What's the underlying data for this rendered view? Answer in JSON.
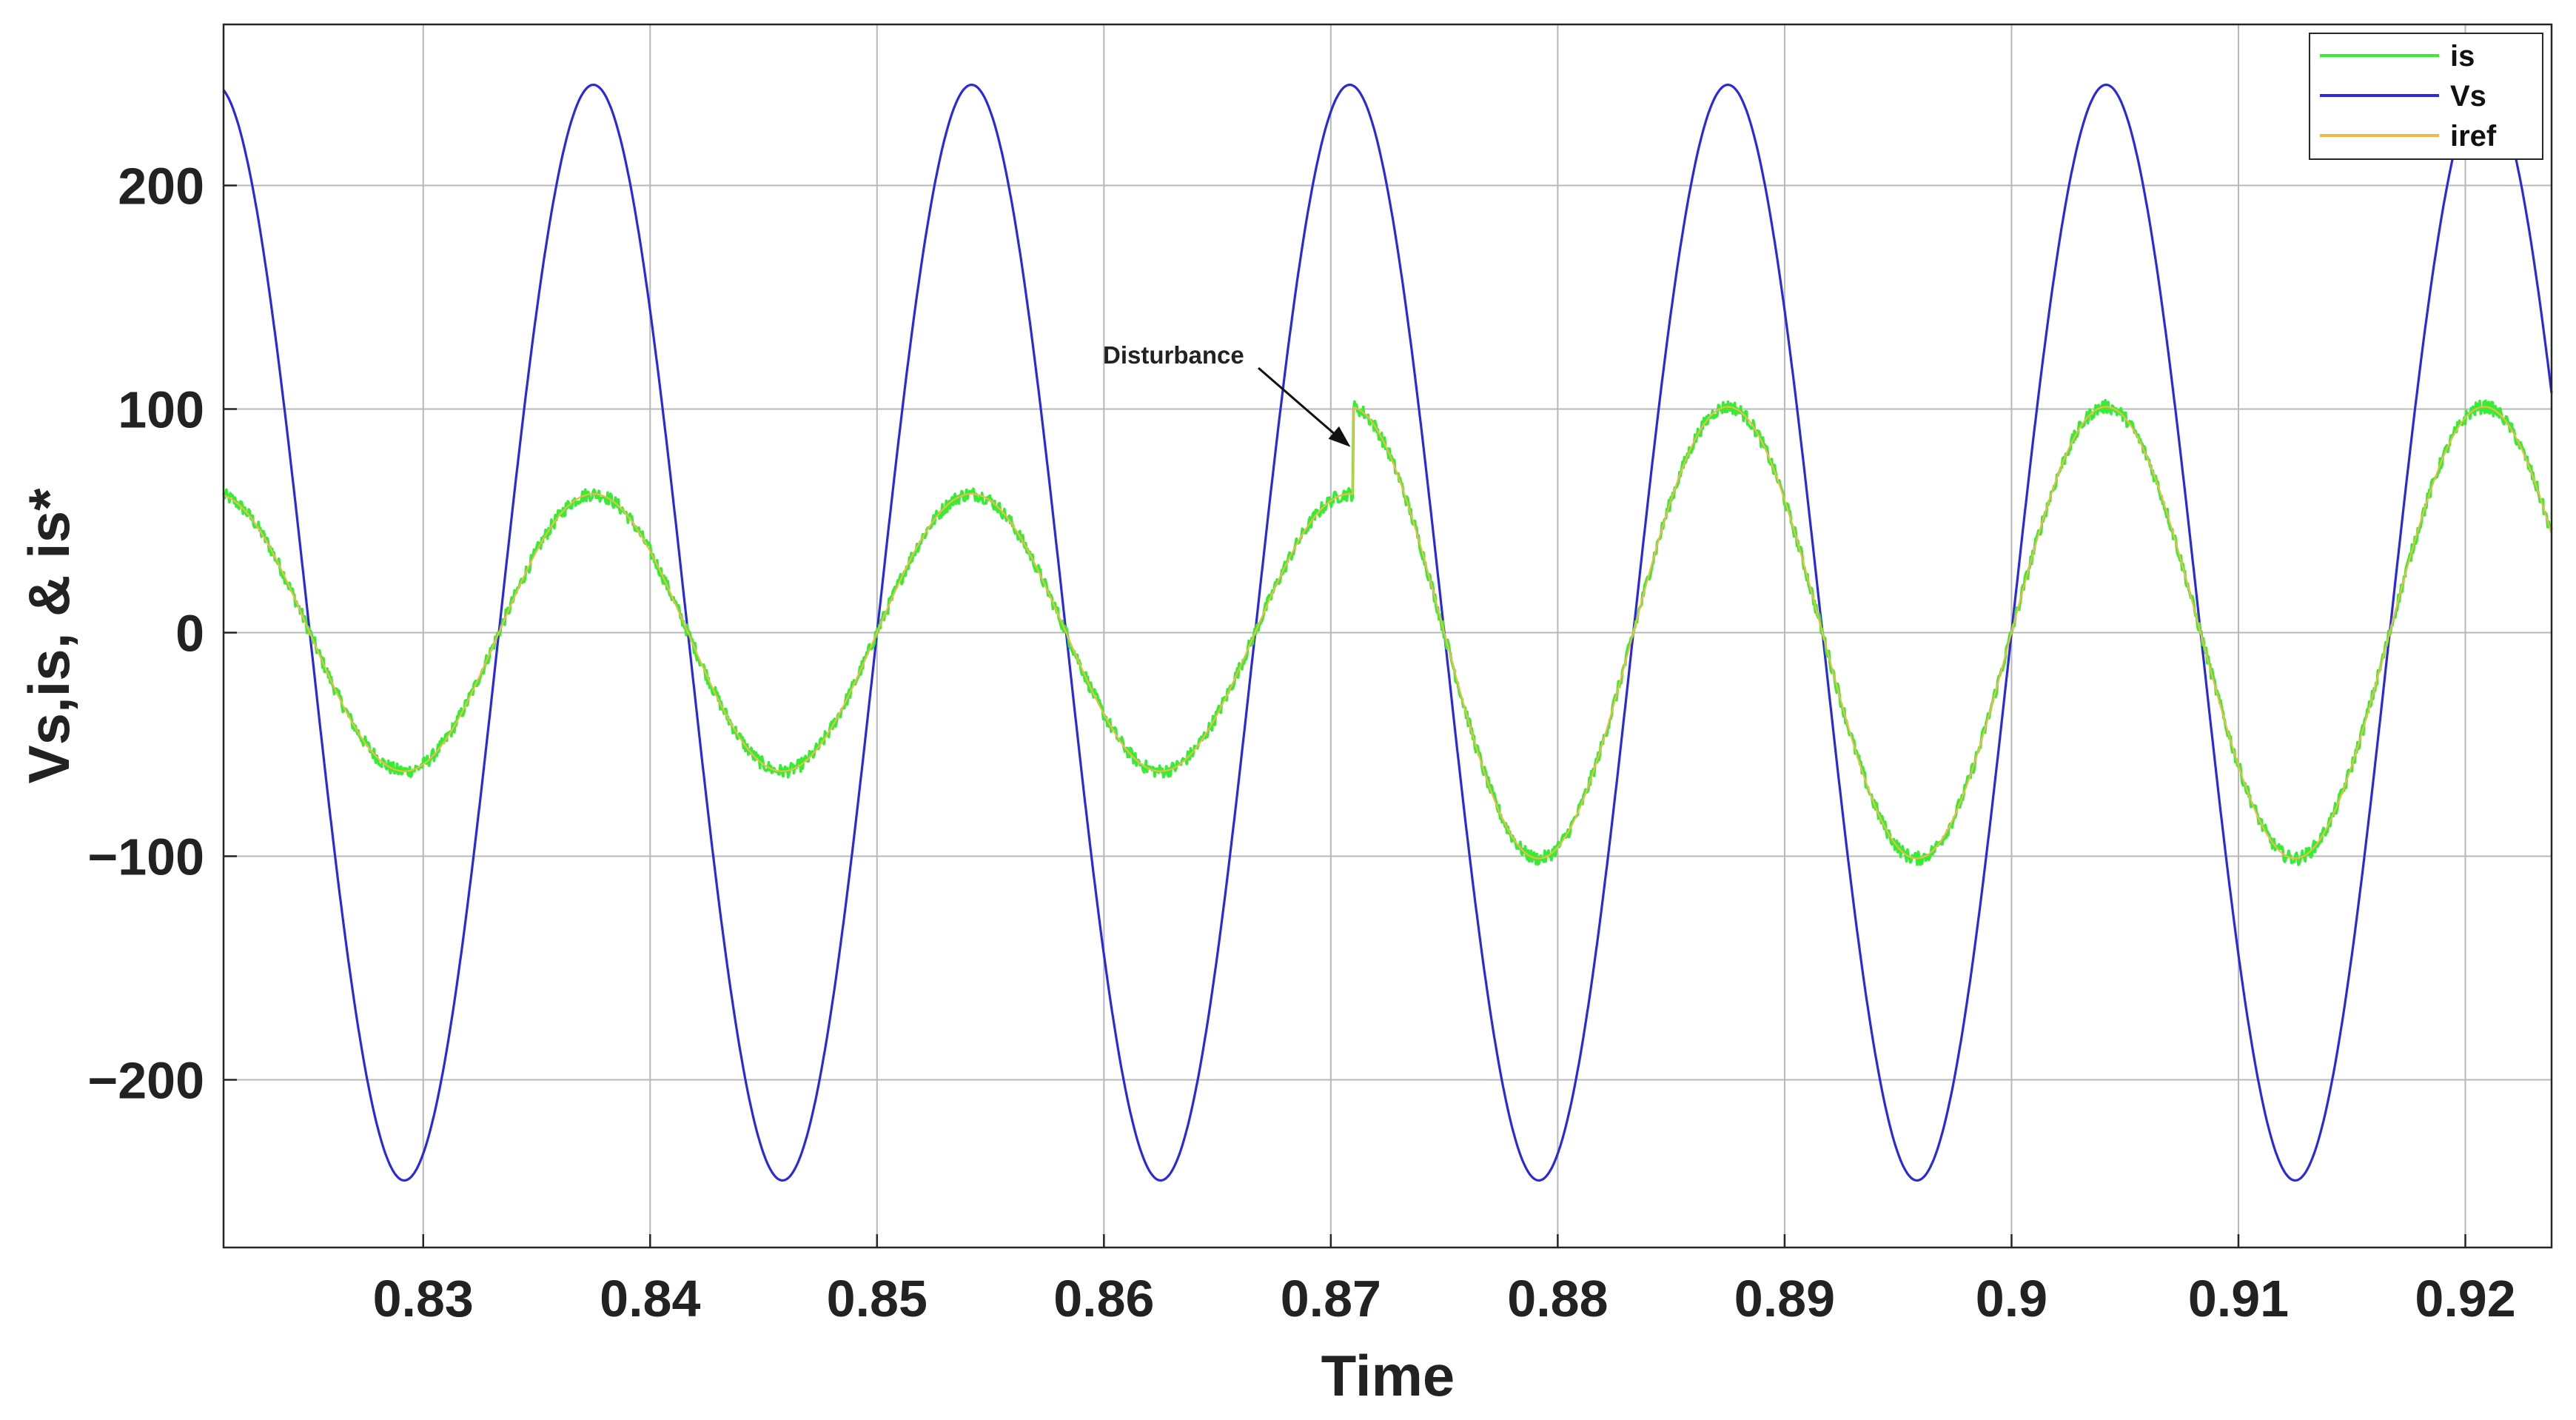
{
  "chart_data": {
    "type": "line",
    "xlabel": "Time",
    "ylabel": "Vs,is, & is*",
    "xlim": [
      0.8212,
      0.9238
    ],
    "ylim": [
      -275,
      272
    ],
    "xticks": [
      0.83,
      0.84,
      0.85,
      0.86,
      0.87,
      0.88,
      0.89,
      0.9,
      0.91,
      0.92
    ],
    "xtick_labels": [
      "0.83",
      "0.84",
      "0.85",
      "0.86",
      "0.87",
      "0.88",
      "0.89",
      "0.9",
      "0.91",
      "0.92"
    ],
    "yticks": [
      200,
      100,
      0,
      -100,
      -200
    ],
    "ytick_labels": [
      "200",
      "100",
      "0",
      "−100",
      "−200"
    ],
    "grid": true,
    "legend_position": "top-right",
    "series": [
      {
        "name": "is",
        "color": "#33ee33",
        "noisy": true,
        "signal": "sinusoid",
        "frequency_hz": 60,
        "zero_crossing_rising": 0.83333,
        "amplitude_before": 62,
        "amplitude_after": 101,
        "step_time": 0.871
      },
      {
        "name": "Vs",
        "color": "#2a2adc",
        "signal": "sinusoid",
        "frequency_hz": 60,
        "amplitude": 245,
        "peak_time": 0.8375
      },
      {
        "name": "iref",
        "color": "#f2b84a",
        "signal": "sinusoid",
        "frequency_hz": 60,
        "zero_crossing_rising": 0.83333,
        "amplitude_before": 62,
        "amplitude_after": 101,
        "step_time": 0.871
      }
    ],
    "annotations": [
      {
        "text": "Disturbance",
        "x": 0.871,
        "y": 83
      }
    ]
  }
}
